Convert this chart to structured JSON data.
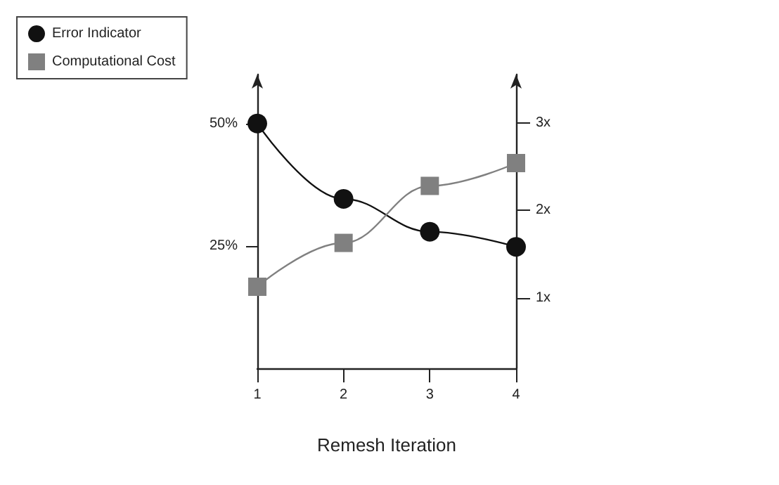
{
  "chart_data": {
    "type": "line",
    "xlabel": "Remesh Iteration",
    "x": [
      1,
      2,
      3,
      4
    ],
    "xlim": [
      1,
      4
    ],
    "xticks": [
      1,
      2,
      3,
      4
    ],
    "ylim": [
      0,
      60
    ],
    "yticks": [
      {
        "value": 25,
        "label": "25%"
      },
      {
        "value": 50,
        "label": "50%"
      }
    ],
    "y2lim": [
      0.2,
      3.55
    ],
    "y2ticks": [
      {
        "value": 1,
        "label": "1x"
      },
      {
        "value": 2,
        "label": "2x"
      },
      {
        "value": 3,
        "label": "3x"
      }
    ],
    "series": [
      {
        "name": "Error Indicator",
        "color": "#111111",
        "marker": "circle",
        "values": [
          50,
          34.6,
          27.9,
          24.8
        ]
      },
      {
        "name": "Computational Cost",
        "color": "#808080",
        "marker": "square",
        "axis": "y2",
        "values": [
          1.13,
          1.63,
          2.28,
          2.54
        ]
      }
    ],
    "legend": "top left",
    "grid": false
  }
}
